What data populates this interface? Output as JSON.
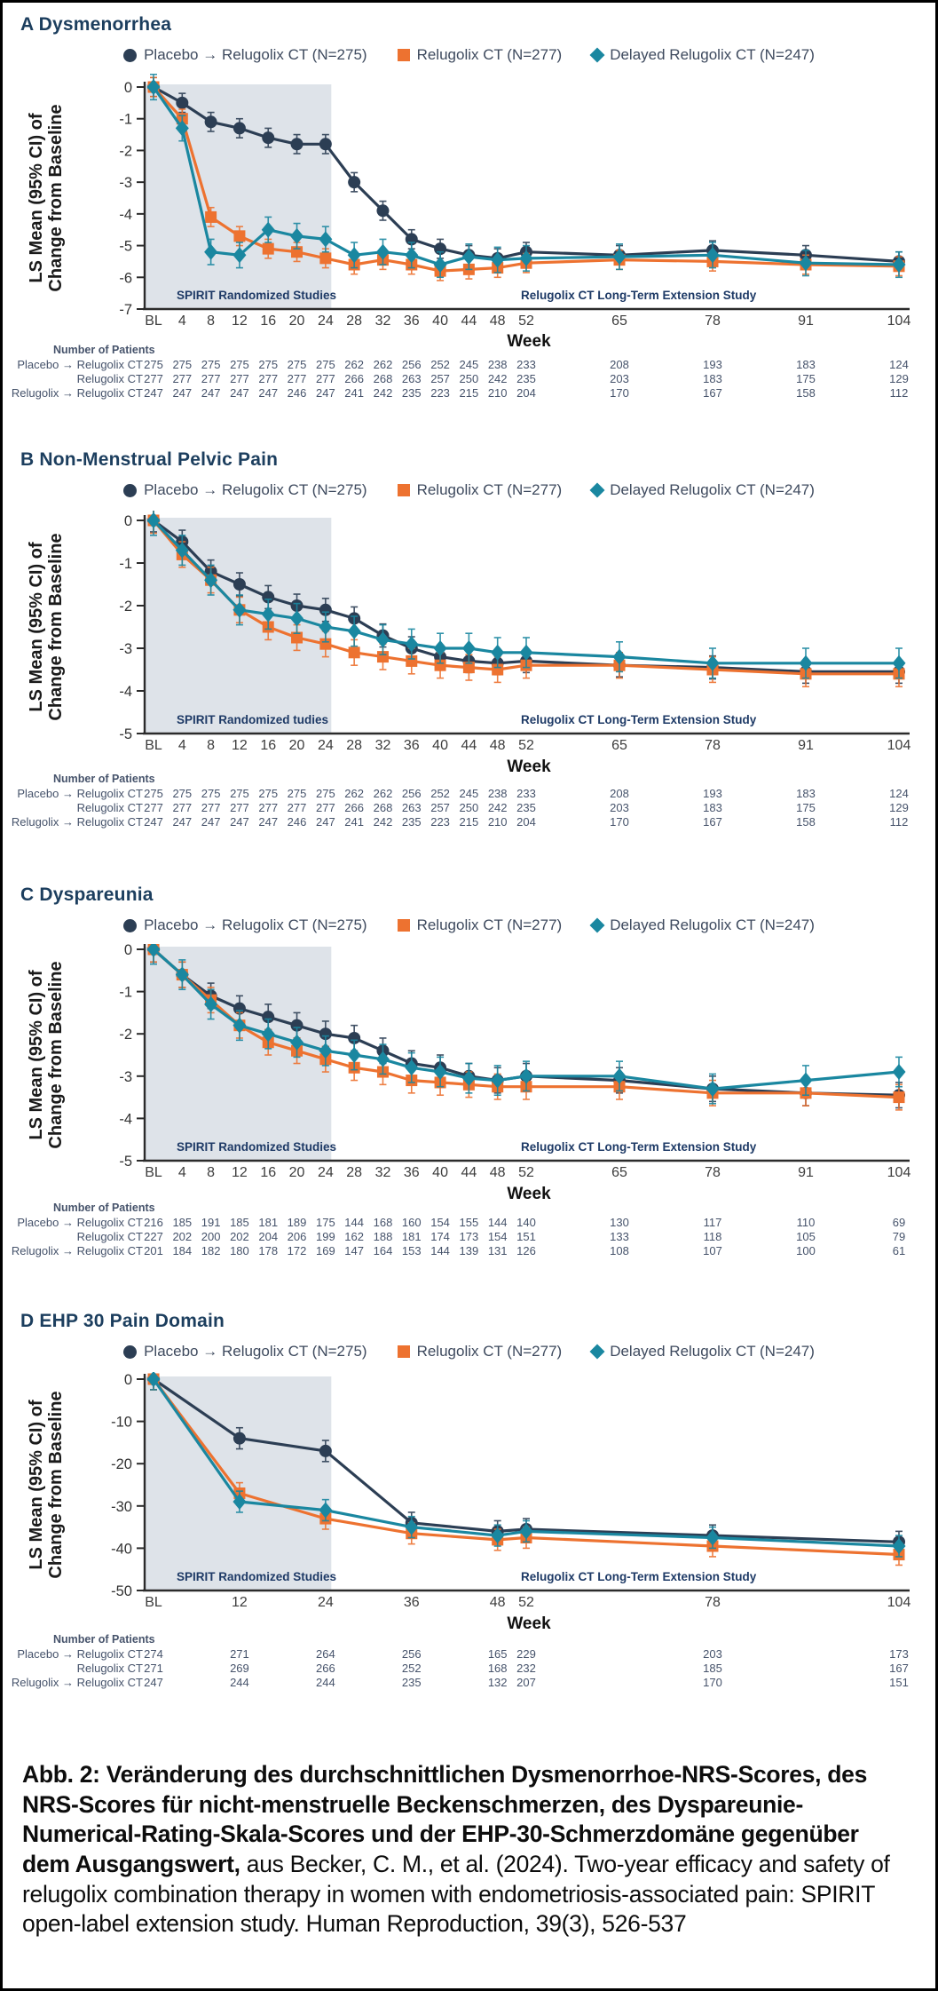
{
  "colors": {
    "navy": "#2c3e54",
    "orange": "#ed7230",
    "teal": "#1a87a0",
    "title_navy": "#1c3e5e",
    "shade": "#dee3e9",
    "axis": "#2b2b2b",
    "region_label": "#1e3a66",
    "table_text": "#46536b",
    "tick_label": "#3d3d3d"
  },
  "legend": {
    "items": [
      {
        "marker": "circle",
        "color_key": "navy",
        "label": "Placebo → Relugolix CT (N=275)"
      },
      {
        "marker": "square",
        "color_key": "orange",
        "label": "Relugolix CT (N=277)"
      },
      {
        "marker": "diamond",
        "color_key": "teal",
        "label": "Delayed Relugolix CT (N=247)"
      }
    ]
  },
  "shared": {
    "xlabel": "Week",
    "ylabel_line1": "LS Mean (95% CI) of",
    "ylabel_line2": "Change from Baseline",
    "patients_header": "Number of Patients",
    "extension_label": "Relugolix CT Long-Term Extension Study"
  },
  "chart_data": [
    {
      "type": "line",
      "title": "A Dysmenorrhea",
      "shaded_label": "SPIRIT Randomized Studies",
      "extension_label": "Relugolix CT Long-Term Extension Study",
      "xlabel": "Week",
      "ylim": [
        -7,
        0
      ],
      "yticks": [
        0,
        -1,
        -2,
        -3,
        -4,
        -5,
        -6,
        -7
      ],
      "weeks": [
        0,
        4,
        8,
        12,
        16,
        20,
        24,
        28,
        32,
        36,
        40,
        44,
        48,
        52,
        65,
        78,
        91,
        104
      ],
      "xtick_labels": [
        "BL",
        "4",
        "8",
        "12",
        "16",
        "20",
        "24",
        "28",
        "32",
        "36",
        "40",
        "44",
        "48",
        "52",
        "65",
        "78",
        "91",
        "104"
      ],
      "shade_end_week": 24.8,
      "series": [
        {
          "name": "Placebo → Relugolix CT",
          "marker": "circle",
          "color_key": "navy",
          "ci": 0.3,
          "values": [
            0,
            -0.5,
            -1.1,
            -1.3,
            -1.6,
            -1.8,
            -1.8,
            -3.0,
            -3.9,
            -4.8,
            -5.1,
            -5.3,
            -5.4,
            -5.2,
            -5.3,
            -5.15,
            -5.3,
            -5.5
          ]
        },
        {
          "name": "Relugolix CT",
          "marker": "square",
          "color_key": "orange",
          "ci": 0.3,
          "values": [
            0,
            -1.0,
            -4.1,
            -4.7,
            -5.1,
            -5.2,
            -5.4,
            -5.6,
            -5.45,
            -5.6,
            -5.8,
            -5.75,
            -5.7,
            -5.55,
            -5.45,
            -5.5,
            -5.6,
            -5.65
          ]
        },
        {
          "name": "Delayed Relugolix CT",
          "marker": "diamond",
          "color_key": "teal",
          "ci": 0.4,
          "values": [
            0,
            -1.3,
            -5.2,
            -5.3,
            -4.5,
            -4.7,
            -4.8,
            -5.3,
            -5.2,
            -5.3,
            -5.6,
            -5.35,
            -5.45,
            -5.4,
            -5.35,
            -5.3,
            -5.55,
            -5.6
          ]
        }
      ],
      "patients": {
        "rows": [
          {
            "label": "Placebo → Relugolix CT",
            "values": [
              275,
              275,
              275,
              275,
              275,
              275,
              275,
              262,
              262,
              256,
              252,
              245,
              238,
              233,
              208,
              193,
              183,
              124
            ]
          },
          {
            "label": "Relugolix CT",
            "values": [
              277,
              277,
              277,
              277,
              277,
              277,
              277,
              266,
              268,
              263,
              257,
              250,
              242,
              235,
              203,
              183,
              175,
              129
            ]
          },
          {
            "label": "Relugolix → Relugolix CT",
            "values": [
              247,
              247,
              247,
              247,
              247,
              246,
              247,
              241,
              242,
              235,
              223,
              215,
              210,
              204,
              170,
              167,
              158,
              112
            ]
          }
        ]
      }
    },
    {
      "type": "line",
      "title": "B Non-Menstrual Pelvic Pain",
      "shaded_label": "SPIRIT Randomized tudies",
      "extension_label": "Relugolix CT Long-Term Extension Study",
      "xlabel": "Week",
      "ylim": [
        -5,
        0
      ],
      "yticks": [
        0,
        -1,
        -2,
        -3,
        -4,
        -5
      ],
      "weeks": [
        0,
        4,
        8,
        12,
        16,
        20,
        24,
        28,
        32,
        36,
        40,
        44,
        48,
        52,
        65,
        78,
        91,
        104
      ],
      "xtick_labels": [
        "BL",
        "4",
        "8",
        "12",
        "16",
        "20",
        "24",
        "28",
        "32",
        "36",
        "40",
        "44",
        "48",
        "52",
        "65",
        "78",
        "91",
        "104"
      ],
      "shade_end_week": 24.8,
      "series": [
        {
          "name": "Placebo → Relugolix CT",
          "marker": "circle",
          "color_key": "navy",
          "ci": 0.27,
          "values": [
            0,
            -0.5,
            -1.2,
            -1.5,
            -1.8,
            -2.0,
            -2.1,
            -2.3,
            -2.7,
            -3.0,
            -3.2,
            -3.3,
            -3.35,
            -3.3,
            -3.4,
            -3.45,
            -3.55,
            -3.55
          ]
        },
        {
          "name": "Relugolix CT",
          "marker": "square",
          "color_key": "orange",
          "ci": 0.3,
          "values": [
            0,
            -0.8,
            -1.4,
            -2.1,
            -2.5,
            -2.75,
            -2.9,
            -3.1,
            -3.2,
            -3.3,
            -3.4,
            -3.45,
            -3.5,
            -3.4,
            -3.4,
            -3.5,
            -3.6,
            -3.6
          ]
        },
        {
          "name": "Delayed Relugolix CT",
          "marker": "diamond",
          "color_key": "teal",
          "ci": 0.35,
          "values": [
            0,
            -0.7,
            -1.4,
            -2.1,
            -2.2,
            -2.3,
            -2.5,
            -2.6,
            -2.8,
            -2.9,
            -3.0,
            -3.0,
            -3.1,
            -3.1,
            -3.2,
            -3.35,
            -3.35,
            -3.35
          ]
        }
      ],
      "patients": {
        "rows": [
          {
            "label": "Placebo → Relugolix CT",
            "values": [
              275,
              275,
              275,
              275,
              275,
              275,
              275,
              262,
              262,
              256,
              252,
              245,
              238,
              233,
              208,
              193,
              183,
              124
            ]
          },
          {
            "label": "Relugolix CT",
            "values": [
              277,
              277,
              277,
              277,
              277,
              277,
              277,
              266,
              268,
              263,
              257,
              250,
              242,
              235,
              203,
              183,
              175,
              129
            ]
          },
          {
            "label": "Relugolix → Relugolix CT",
            "values": [
              247,
              247,
              247,
              247,
              247,
              246,
              247,
              241,
              242,
              235,
              223,
              215,
              210,
              204,
              170,
              167,
              158,
              112
            ]
          }
        ]
      }
    },
    {
      "type": "line",
      "title": "C Dyspareunia",
      "shaded_label": "SPIRIT Randomized Studies",
      "extension_label": "Relugolix CT Long-Term Extension Study",
      "xlabel": "Week",
      "ylim": [
        -5,
        0
      ],
      "yticks": [
        0,
        -1,
        -2,
        -3,
        -4,
        -5
      ],
      "weeks": [
        0,
        4,
        8,
        12,
        16,
        20,
        24,
        28,
        32,
        36,
        40,
        44,
        48,
        52,
        65,
        78,
        91,
        104
      ],
      "xtick_labels": [
        "BL",
        "4",
        "8",
        "12",
        "16",
        "20",
        "24",
        "28",
        "32",
        "36",
        "40",
        "44",
        "48",
        "52",
        "65",
        "78",
        "91",
        "104"
      ],
      "shade_end_week": 24.8,
      "series": [
        {
          "name": "Placebo → Relugolix CT",
          "marker": "circle",
          "color_key": "navy",
          "ci": 0.3,
          "values": [
            0,
            -0.6,
            -1.1,
            -1.4,
            -1.6,
            -1.8,
            -2.0,
            -2.1,
            -2.4,
            -2.7,
            -2.8,
            -3.0,
            -3.1,
            -3.0,
            -3.1,
            -3.3,
            -3.4,
            -3.45
          ]
        },
        {
          "name": "Relugolix CT",
          "marker": "square",
          "color_key": "orange",
          "ci": 0.3,
          "values": [
            0,
            -0.6,
            -1.2,
            -1.8,
            -2.2,
            -2.4,
            -2.6,
            -2.8,
            -2.9,
            -3.1,
            -3.15,
            -3.2,
            -3.25,
            -3.25,
            -3.25,
            -3.4,
            -3.4,
            -3.5
          ]
        },
        {
          "name": "Delayed Relugolix CT",
          "marker": "diamond",
          "color_key": "teal",
          "ci": 0.35,
          "values": [
            0,
            -0.6,
            -1.3,
            -1.8,
            -2.0,
            -2.2,
            -2.4,
            -2.5,
            -2.6,
            -2.8,
            -2.9,
            -3.05,
            -3.1,
            -3.0,
            -3.0,
            -3.3,
            -3.1,
            -2.9
          ]
        }
      ],
      "patients": {
        "rows": [
          {
            "label": "Placebo → Relugolix CT",
            "values": [
              216,
              185,
              191,
              185,
              181,
              189,
              175,
              144,
              168,
              160,
              154,
              155,
              144,
              140,
              130,
              117,
              110,
              69
            ]
          },
          {
            "label": "Relugolix CT",
            "values": [
              227,
              202,
              200,
              202,
              204,
              206,
              199,
              162,
              188,
              181,
              174,
              173,
              154,
              151,
              133,
              118,
              105,
              79
            ]
          },
          {
            "label": "Relugolix → Relugolix CT",
            "values": [
              201,
              184,
              182,
              180,
              178,
              172,
              169,
              147,
              164,
              153,
              144,
              139,
              131,
              126,
              108,
              107,
              100,
              61
            ]
          }
        ]
      }
    },
    {
      "type": "line",
      "title": "D EHP 30 Pain Domain",
      "shaded_label": "SPIRIT Randomized Studies",
      "extension_label": "Relugolix CT Long-Term Extension Study",
      "xlabel": "Week",
      "ylim": [
        -50,
        0
      ],
      "yticks": [
        0,
        -10,
        -20,
        -30,
        -40,
        -50
      ],
      "weeks": [
        0,
        12,
        24,
        36,
        48,
        52,
        78,
        104
      ],
      "xtick_labels": [
        "BL",
        "12",
        "24",
        "36",
        "48",
        "52",
        "78",
        "104"
      ],
      "shade_end_week": 24.8,
      "series": [
        {
          "name": "Placebo → Relugolix CT",
          "marker": "circle",
          "color_key": "navy",
          "ci": 2.5,
          "values": [
            0,
            -14,
            -17,
            -34,
            -36,
            -35.5,
            -37,
            -38.5
          ]
        },
        {
          "name": "Relugolix CT",
          "marker": "square",
          "color_key": "orange",
          "ci": 2.5,
          "values": [
            0,
            -27,
            -33,
            -36.5,
            -38,
            -37.5,
            -39.5,
            -41.5
          ]
        },
        {
          "name": "Delayed Relugolix CT",
          "marker": "diamond",
          "color_key": "teal",
          "ci": 2.5,
          "values": [
            0,
            -29,
            -31,
            -35,
            -37,
            -36,
            -37.5,
            -39.5
          ]
        }
      ],
      "patients": {
        "rows": [
          {
            "label": "Placebo → Relugolix CT",
            "values": [
              274,
              271,
              264,
              256,
              165,
              229,
              203,
              173
            ]
          },
          {
            "label": "Relugolix CT",
            "values": [
              271,
              269,
              266,
              252,
              168,
              232,
              185,
              167
            ]
          },
          {
            "label": "Relugolix → Relugolix CT",
            "values": [
              247,
              244,
              244,
              235,
              132,
              207,
              170,
              151
            ]
          }
        ]
      }
    }
  ],
  "caption": {
    "bold": "Abb. 2: Veränderung des durchschnittlichen Dysmenorrhoe-NRS-Scores, des NRS-Scores für nicht-menstruelle Beckenschmerzen, des Dyspareunie-Numerical-Rating-Skala-Scores und der EHP-30-Schmerzdomäne gegenüber dem Ausgangswert,",
    "regular": " aus Becker, C. M., et al. (2024). Two-year efficacy and safety of relugolix combination therapy in women with endometriosis-associated pain: SPIRIT open-label extension study. Human Reproduction, 39(3), 526-537"
  }
}
